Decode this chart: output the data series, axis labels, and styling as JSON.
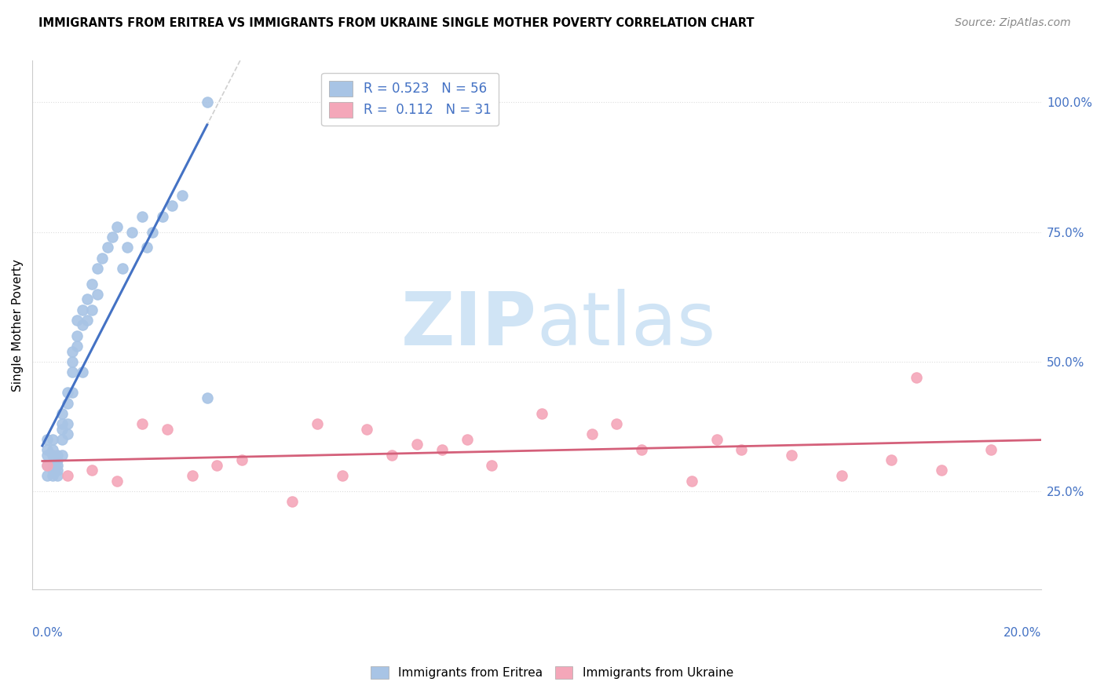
{
  "title": "IMMIGRANTS FROM ERITREA VS IMMIGRANTS FROM UKRAINE SINGLE MOTHER POVERTY CORRELATION CHART",
  "source": "Source: ZipAtlas.com",
  "ylabel": "Single Mother Poverty",
  "R_eritrea": 0.523,
  "N_eritrea": 56,
  "R_ukraine": 0.112,
  "N_ukraine": 31,
  "color_eritrea": "#a8c4e5",
  "color_ukraine": "#f4a7b9",
  "line_color_eritrea": "#4472C4",
  "line_color_ukraine": "#d4607a",
  "dash_color": "#bbbbbb",
  "watermark_color": "#d0e4f5",
  "background_color": "#ffffff",
  "xlim": [
    0.0,
    0.2
  ],
  "ylim": [
    0.06,
    1.08
  ],
  "ytick_vals": [
    0.25,
    0.5,
    0.75,
    1.0
  ],
  "grid_color": "#dddddd",
  "eritrea_x": [
    0.001,
    0.001,
    0.001,
    0.001,
    0.001,
    0.002,
    0.002,
    0.002,
    0.002,
    0.002,
    0.002,
    0.003,
    0.003,
    0.003,
    0.003,
    0.003,
    0.004,
    0.004,
    0.004,
    0.004,
    0.004,
    0.005,
    0.005,
    0.005,
    0.005,
    0.006,
    0.006,
    0.006,
    0.006,
    0.007,
    0.007,
    0.007,
    0.008,
    0.008,
    0.008,
    0.009,
    0.009,
    0.01,
    0.01,
    0.011,
    0.011,
    0.012,
    0.013,
    0.014,
    0.015,
    0.016,
    0.017,
    0.018,
    0.02,
    0.021,
    0.022,
    0.024,
    0.026,
    0.028,
    0.033,
    0.033
  ],
  "eritrea_y": [
    0.3,
    0.32,
    0.33,
    0.35,
    0.28,
    0.3,
    0.32,
    0.28,
    0.33,
    0.35,
    0.29,
    0.3,
    0.32,
    0.28,
    0.31,
    0.29,
    0.4,
    0.38,
    0.35,
    0.37,
    0.32,
    0.42,
    0.44,
    0.38,
    0.36,
    0.5,
    0.52,
    0.48,
    0.44,
    0.58,
    0.55,
    0.53,
    0.6,
    0.57,
    0.48,
    0.62,
    0.58,
    0.65,
    0.6,
    0.68,
    0.63,
    0.7,
    0.72,
    0.74,
    0.76,
    0.68,
    0.72,
    0.75,
    0.78,
    0.72,
    0.75,
    0.78,
    0.8,
    0.82,
    0.43,
    1.0
  ],
  "ukraine_x": [
    0.001,
    0.005,
    0.01,
    0.015,
    0.02,
    0.025,
    0.03,
    0.035,
    0.04,
    0.05,
    0.055,
    0.06,
    0.065,
    0.07,
    0.075,
    0.08,
    0.085,
    0.09,
    0.1,
    0.11,
    0.115,
    0.12,
    0.13,
    0.135,
    0.14,
    0.15,
    0.16,
    0.17,
    0.175,
    0.18,
    0.19
  ],
  "ukraine_y": [
    0.3,
    0.28,
    0.29,
    0.27,
    0.38,
    0.37,
    0.28,
    0.3,
    0.31,
    0.23,
    0.38,
    0.28,
    0.37,
    0.32,
    0.34,
    0.33,
    0.35,
    0.3,
    0.4,
    0.36,
    0.38,
    0.33,
    0.27,
    0.35,
    0.33,
    0.32,
    0.28,
    0.31,
    0.47,
    0.29,
    0.33
  ]
}
